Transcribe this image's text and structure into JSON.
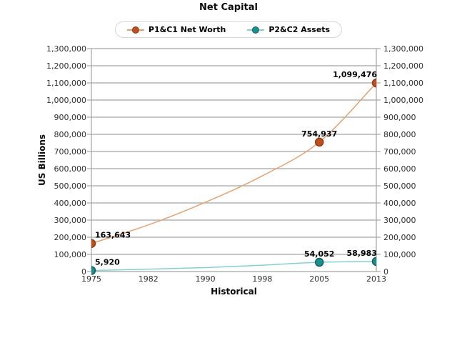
{
  "chart_data": {
    "type": "line",
    "title": "Net Capital",
    "xlabel": "Historical",
    "ylabel": "US Billions",
    "background": "#ffffff",
    "grid": "horizontal",
    "legend_position": "top",
    "x_categories": [
      "1975",
      "1982",
      "1990",
      "1998",
      "2005",
      "2013"
    ],
    "ylim": [
      0,
      1300000
    ],
    "y_tick_step": 100000,
    "y_ticks": [
      "0",
      "100,000",
      "200,000",
      "300,000",
      "400,000",
      "500,000",
      "600,000",
      "700,000",
      "800,000",
      "900,000",
      "1,000,000",
      "1,100,000",
      "1,200,000",
      "1,300,000"
    ],
    "series": [
      {
        "name": "P1&C1 Net Worth",
        "color": "#c24e1c",
        "marker_stroke": "#8f3a10",
        "line_color": "#e4a273",
        "points": [
          {
            "x": "1975",
            "y": 163643,
            "label": "163,643"
          },
          {
            "x": "2005",
            "y": 754937,
            "label": "754,937"
          },
          {
            "x": "2013",
            "y": 1099476,
            "label": "1,099,476"
          }
        ],
        "line_shape": [
          {
            "x": "1975",
            "y": 163643
          },
          {
            "x": "1982",
            "y": 272000
          },
          {
            "x": "1990",
            "y": 404000
          },
          {
            "x": "1998",
            "y": 558000
          },
          {
            "x": "2005",
            "y": 754937
          },
          {
            "x": "2013",
            "y": 1099476
          }
        ]
      },
      {
        "name": "P2&C2 Assets",
        "color": "#1b918d",
        "marker_stroke": "#0f615e",
        "line_color": "#85d1cf",
        "points": [
          {
            "x": "1975",
            "y": 5920,
            "label": "5,920"
          },
          {
            "x": "2005",
            "y": 54052,
            "label": "54,052"
          },
          {
            "x": "2013",
            "y": 58983,
            "label": "58,983"
          }
        ],
        "line_shape": [
          {
            "x": "1975",
            "y": 5920
          },
          {
            "x": "1982",
            "y": 14000
          },
          {
            "x": "1990",
            "y": 23000
          },
          {
            "x": "1998",
            "y": 37000
          },
          {
            "x": "2005",
            "y": 54052
          },
          {
            "x": "2013",
            "y": 58983
          }
        ]
      }
    ]
  }
}
